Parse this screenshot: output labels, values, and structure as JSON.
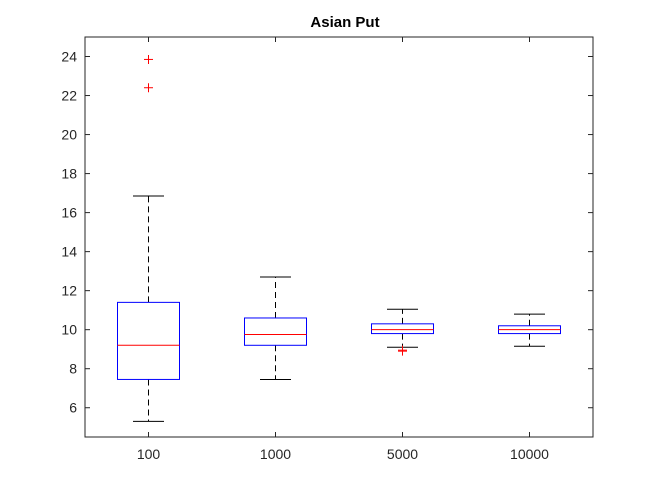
{
  "chart_data": {
    "type": "box",
    "title": "Asian Put",
    "xlabel": "",
    "ylabel": "",
    "categories": [
      "100",
      "1000",
      "5000",
      "10000"
    ],
    "ylim": [
      4.5,
      25
    ],
    "yticks": [
      6,
      8,
      10,
      12,
      14,
      16,
      18,
      20,
      22,
      24
    ],
    "grid": false,
    "boxes": [
      {
        "category": "100",
        "whisker_low": 5.3,
        "q1": 7.45,
        "median": 9.2,
        "q3": 11.4,
        "whisker_high": 16.85,
        "outliers": [
          22.4,
          23.85
        ]
      },
      {
        "category": "1000",
        "whisker_low": 7.45,
        "q1": 9.2,
        "median": 9.75,
        "q3": 10.6,
        "whisker_high": 12.7,
        "outliers": []
      },
      {
        "category": "5000",
        "whisker_low": 9.1,
        "q1": 9.8,
        "median": 10.0,
        "q3": 10.3,
        "whisker_high": 11.05,
        "outliers": [
          8.9,
          8.95
        ]
      },
      {
        "category": "10000",
        "whisker_low": 9.15,
        "q1": 9.8,
        "median": 10.0,
        "q3": 10.2,
        "whisker_high": 10.8,
        "outliers": []
      }
    ],
    "colors": {
      "box": "#0000ff",
      "median": "#ff0000",
      "whisker": "#000000",
      "outlier": "#ff0000",
      "axes": "#262626"
    }
  }
}
